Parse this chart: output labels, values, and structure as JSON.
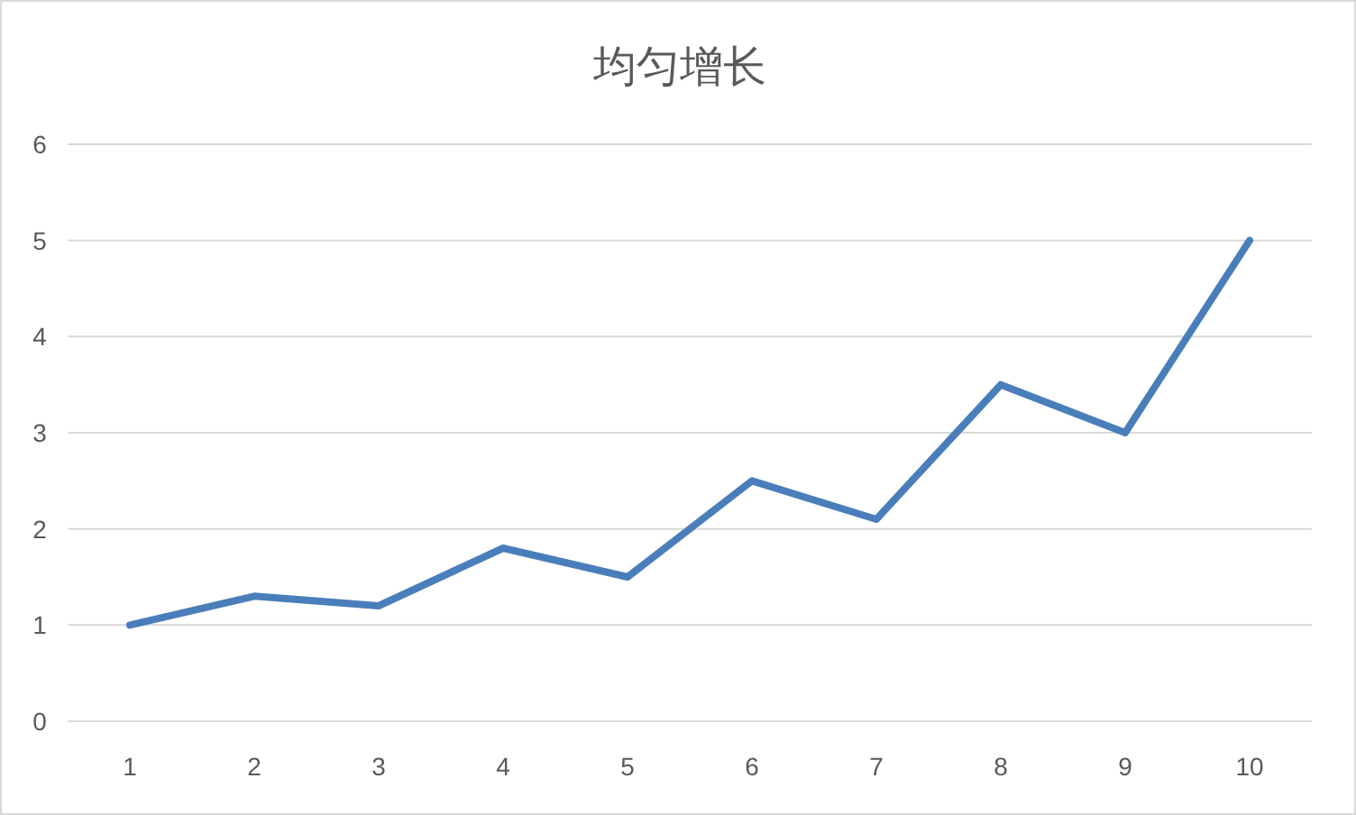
{
  "chart_data": {
    "type": "line",
    "title": "均匀增长",
    "categories": [
      "1",
      "2",
      "3",
      "4",
      "5",
      "6",
      "7",
      "8",
      "9",
      "10"
    ],
    "series": [
      {
        "color": "#4a7ebb",
        "values": [
          1,
          1.3,
          1.2,
          1.8,
          1.5,
          2.5,
          2.1,
          3.5,
          3,
          5
        ]
      }
    ],
    "ylim": [
      0,
      6
    ],
    "yticks": [
      0,
      1,
      2,
      3,
      4,
      5,
      6
    ],
    "grid": "y",
    "marker": "none",
    "line_style": "solid"
  }
}
